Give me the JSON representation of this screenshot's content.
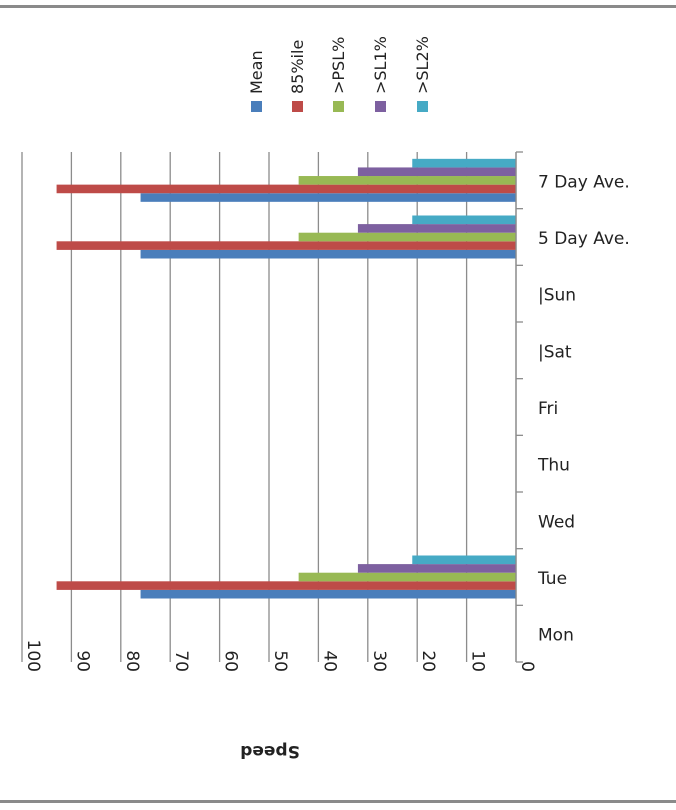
{
  "chart_data": {
    "type": "bar",
    "orientation": "horizontal",
    "categories": [
      "Mon",
      "Tue",
      "Wed",
      "Thu",
      "Fri",
      "|Sat",
      "|Sun",
      "5 Day Ave.",
      "7 Day Ave."
    ],
    "series": [
      {
        "name": "Mean",
        "color": "#4a7ebb",
        "values": [
          null,
          76,
          null,
          null,
          null,
          null,
          null,
          76,
          76
        ]
      },
      {
        "name": "85%ile",
        "color": "#be4b48",
        "values": [
          null,
          93,
          null,
          null,
          null,
          null,
          null,
          93,
          93
        ]
      },
      {
        "name": ">PSL%",
        "color": "#98b954",
        "values": [
          null,
          44,
          null,
          null,
          null,
          null,
          null,
          44,
          44
        ]
      },
      {
        "name": ">SL1%",
        "color": "#7d60a0",
        "values": [
          null,
          32,
          null,
          null,
          null,
          null,
          null,
          32,
          32
        ]
      },
      {
        "name": ">SL2%",
        "color": "#46aac5",
        "values": [
          null,
          21,
          null,
          null,
          null,
          null,
          null,
          21,
          21
        ]
      }
    ],
    "xlim": [
      0,
      100
    ],
    "xticks": [
      "0",
      "10",
      "20",
      "30",
      "40",
      "50",
      "60",
      "70",
      "80",
      "90",
      "100"
    ],
    "xlabel": "Speed",
    "x_reversed": true,
    "grid": "vertical",
    "legend_position": "top"
  }
}
